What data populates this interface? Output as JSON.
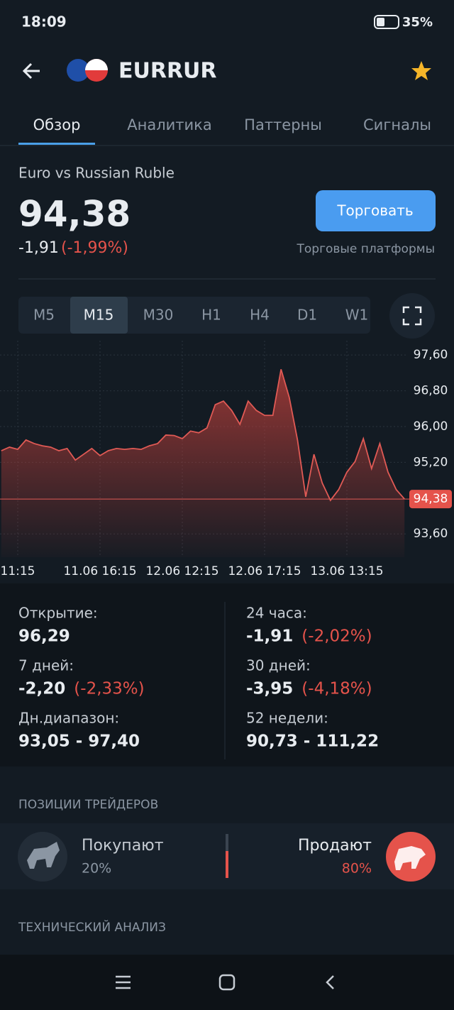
{
  "status": {
    "time": "18:09",
    "battery": "35%"
  },
  "header": {
    "symbol": "EURRUR"
  },
  "tabs": [
    "Обзор",
    "Аналитика",
    "Паттерны",
    "Сигналы"
  ],
  "quote": {
    "name": "Euro vs Russian Ruble",
    "price": "94,38",
    "change": "-1,91",
    "change_pct": "(-1,99%)",
    "button": "Торговать",
    "platforms": "Торговые платформы"
  },
  "timeframes": [
    "M5",
    "M15",
    "M30",
    "H1",
    "H4",
    "D1",
    "W1"
  ],
  "chart_data": {
    "type": "area",
    "color": "#e05a55",
    "categories": [
      null,
      null,
      "11:15",
      null,
      null,
      null,
      null,
      null,
      null,
      null,
      null,
      null,
      "11.06 16:15",
      null,
      null,
      null,
      null,
      null,
      null,
      null,
      null,
      null,
      "12.06 12:15",
      null,
      null,
      null,
      null,
      null,
      null,
      null,
      null,
      null,
      "12.06 17:15",
      null,
      null,
      null,
      null,
      null,
      null,
      null,
      null,
      null,
      "13.06 13:15",
      null,
      null,
      null,
      null,
      null,
      null,
      null
    ],
    "values": [
      95.46,
      95.54,
      95.49,
      95.7,
      95.62,
      95.57,
      95.54,
      95.46,
      95.51,
      95.25,
      95.38,
      95.51,
      95.35,
      95.46,
      95.51,
      95.49,
      95.51,
      95.49,
      95.57,
      95.62,
      95.81,
      95.8,
      95.73,
      95.9,
      95.86,
      95.97,
      96.49,
      96.57,
      96.36,
      96.05,
      96.57,
      96.36,
      96.25,
      96.25,
      97.28,
      96.65,
      95.7,
      94.43,
      95.38,
      94.74,
      94.35,
      94.59,
      94.98,
      95.22,
      95.73,
      95.06,
      95.62,
      94.98,
      94.59,
      94.38
    ],
    "ylim": [
      93.08,
      97.92
    ],
    "yticks": [
      {
        "value": 97.6,
        "label": "97,60"
      },
      {
        "value": 96.8,
        "label": "96,80"
      },
      {
        "value": 96.0,
        "label": "96,00"
      },
      {
        "value": 95.2,
        "label": "95,20"
      },
      {
        "value": 93.6,
        "label": "93,60"
      }
    ],
    "annotations": [
      {
        "value": 94.38,
        "label": "94,38"
      }
    ],
    "grid": true
  },
  "stats": [
    {
      "label": "Открытие:",
      "value": "96,29"
    },
    {
      "label": "7 дней:",
      "value": "-2,20",
      "pct": "(-2,33%)"
    },
    {
      "label": "Дн.диапазон:",
      "value": "93,05 - 97,40"
    },
    {
      "label": "24 часа:",
      "value": "-1,91",
      "pct": "(-2,02%)"
    },
    {
      "label": "30 дней:",
      "value": "-3,95",
      "pct": "(-4,18%)"
    },
    {
      "label": "52 недели:",
      "value": "90,73 - 111,22"
    }
  ],
  "traders": {
    "title": "ПОЗИЦИИ ТРЕЙДЕРОВ",
    "buy_label": "Покупают",
    "buy_pct": "20%",
    "sell_label": "Продают",
    "sell_pct": "80%"
  },
  "technical": {
    "title": "ТЕХНИЧЕСКИЙ АНАЛИЗ"
  }
}
